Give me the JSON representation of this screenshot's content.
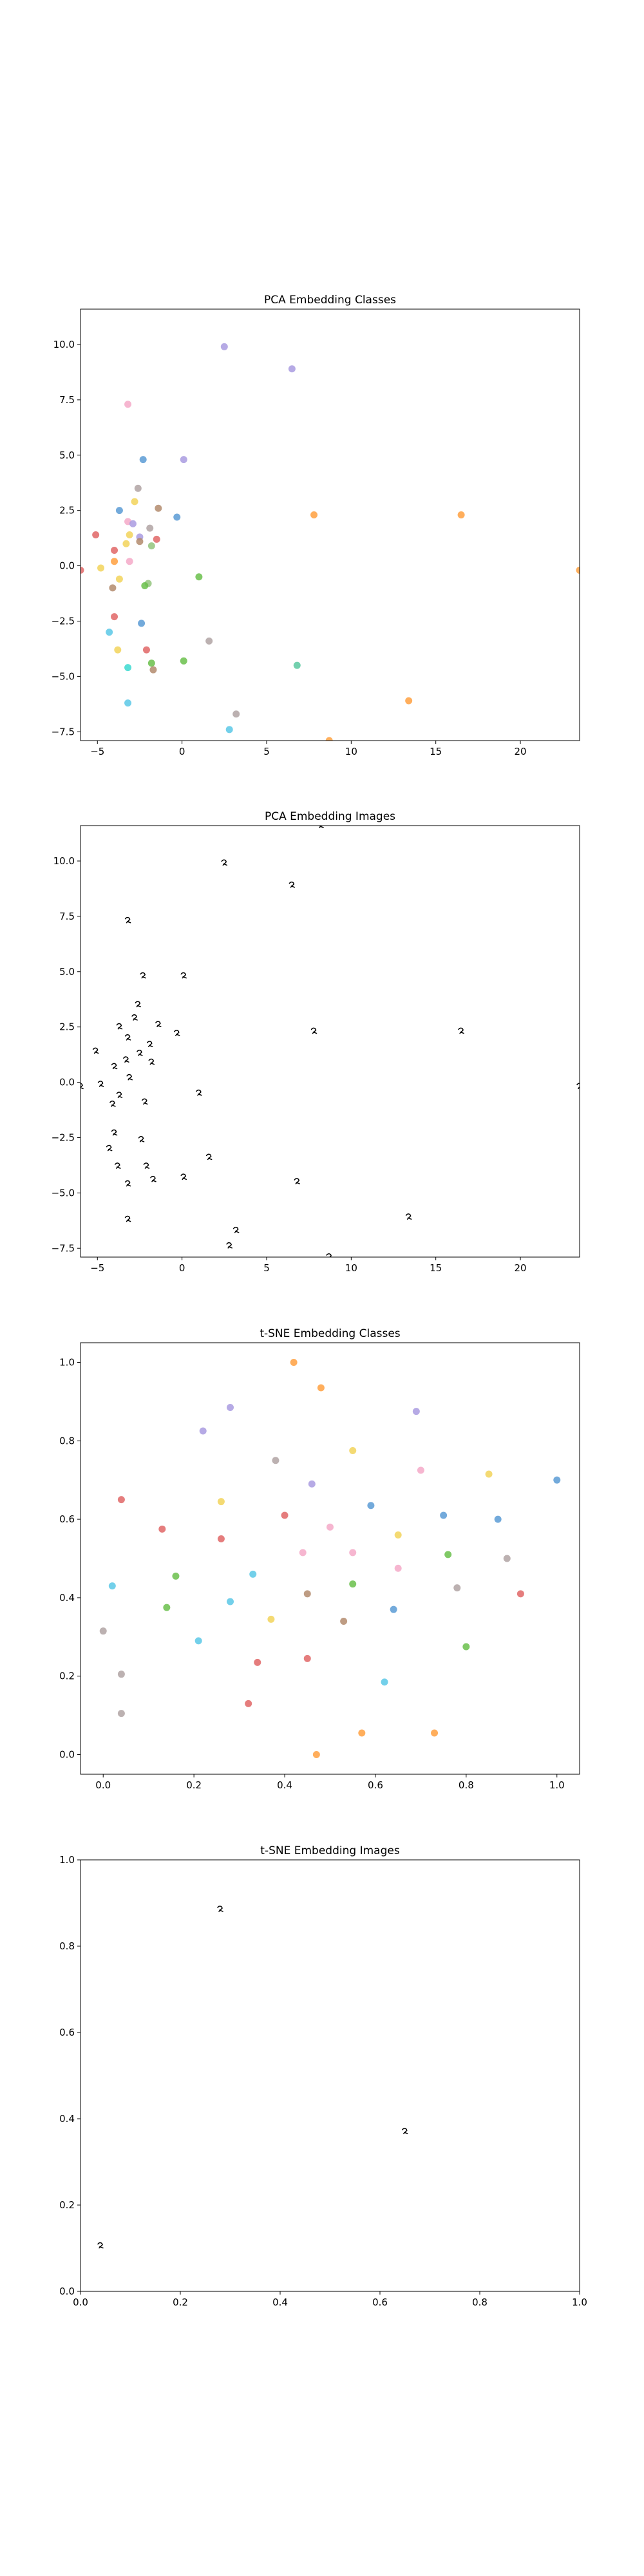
{
  "chart_data": [
    {
      "type": "scatter",
      "title": "PCA Embedding Classes",
      "xlim": [
        -6,
        23.5
      ],
      "ylim": [
        -7.9,
        11.6
      ],
      "xticks": [
        -5,
        0,
        5,
        10,
        15,
        20
      ],
      "yticks": [
        -7.5,
        -5.0,
        -2.5,
        0.0,
        2.5,
        5.0,
        7.5,
        10.0
      ],
      "xtick_labels": [
        "−5",
        "0",
        "5",
        "10",
        "15",
        "20"
      ],
      "ytick_labels": [
        "−7.5",
        "−5.0",
        "−2.5",
        "0.0",
        "2.5",
        "5.0",
        "7.5",
        "10.0"
      ],
      "grid": false,
      "marker_style": "colored dots",
      "points": [
        {
          "x": 2.5,
          "y": 9.9,
          "color": "#a99be0"
        },
        {
          "x": 6.5,
          "y": 8.9,
          "color": "#a99be0"
        },
        {
          "x": -3.2,
          "y": 7.3,
          "color": "#f4a9c8"
        },
        {
          "x": -2.3,
          "y": 4.8,
          "color": "#5b9bd5"
        },
        {
          "x": 0.1,
          "y": 4.8,
          "color": "#a99be0"
        },
        {
          "x": -2.6,
          "y": 3.5,
          "color": "#b0a3a3"
        },
        {
          "x": -2.8,
          "y": 2.9,
          "color": "#f2d35a"
        },
        {
          "x": -1.4,
          "y": 2.6,
          "color": "#b38b6d"
        },
        {
          "x": -3.7,
          "y": 2.5,
          "color": "#5b9bd5"
        },
        {
          "x": -0.3,
          "y": 2.2,
          "color": "#5b9bd5"
        },
        {
          "x": 7.8,
          "y": 2.3,
          "color": "#ffa040"
        },
        {
          "x": 16.5,
          "y": 2.3,
          "color": "#ffa040"
        },
        {
          "x": -3.2,
          "y": 2.0,
          "color": "#f4a9c8"
        },
        {
          "x": -2.9,
          "y": 1.9,
          "color": "#a99be0"
        },
        {
          "x": -1.9,
          "y": 1.7,
          "color": "#b0a3a3"
        },
        {
          "x": -3.1,
          "y": 1.4,
          "color": "#f2d35a"
        },
        {
          "x": -5.1,
          "y": 1.4,
          "color": "#e06666"
        },
        {
          "x": -2.5,
          "y": 1.3,
          "color": "#a99be0"
        },
        {
          "x": -1.5,
          "y": 1.2,
          "color": "#e06666"
        },
        {
          "x": -3.3,
          "y": 1.0,
          "color": "#f2d35a"
        },
        {
          "x": -2.5,
          "y": 1.1,
          "color": "#b38b6d"
        },
        {
          "x": -1.8,
          "y": 0.9,
          "color": "#93c47d"
        },
        {
          "x": -4.0,
          "y": 0.7,
          "color": "#e06666"
        },
        {
          "x": -4.0,
          "y": 0.2,
          "color": "#ffa040"
        },
        {
          "x": -3.1,
          "y": 0.2,
          "color": "#f4a9c8"
        },
        {
          "x": -4.8,
          "y": -0.1,
          "color": "#f2d35a"
        },
        {
          "x": -6.0,
          "y": -0.2,
          "color": "#e06666"
        },
        {
          "x": 23.5,
          "y": -0.2,
          "color": "#ffa040"
        },
        {
          "x": -3.7,
          "y": -0.6,
          "color": "#f2d35a"
        },
        {
          "x": 1.0,
          "y": -0.5,
          "color": "#6abf4b"
        },
        {
          "x": -2.0,
          "y": -0.8,
          "color": "#93c47d"
        },
        {
          "x": -2.2,
          "y": -0.9,
          "color": "#6abf4b"
        },
        {
          "x": -4.1,
          "y": -1.0,
          "color": "#b38b6d"
        },
        {
          "x": -4.0,
          "y": -2.3,
          "color": "#e06666"
        },
        {
          "x": -2.4,
          "y": -2.6,
          "color": "#5b9bd5"
        },
        {
          "x": -4.3,
          "y": -3.0,
          "color": "#5bc8e6"
        },
        {
          "x": 1.6,
          "y": -3.4,
          "color": "#b0a3a3"
        },
        {
          "x": -3.8,
          "y": -3.8,
          "color": "#f2d35a"
        },
        {
          "x": -2.1,
          "y": -3.8,
          "color": "#e06666"
        },
        {
          "x": -1.8,
          "y": -4.4,
          "color": "#6abf4b"
        },
        {
          "x": -3.2,
          "y": -4.6,
          "color": "#3bd9d0"
        },
        {
          "x": -1.7,
          "y": -4.7,
          "color": "#b38b6d"
        },
        {
          "x": 0.1,
          "y": -4.3,
          "color": "#6abf4b"
        },
        {
          "x": 6.8,
          "y": -4.5,
          "color": "#5bc8a0"
        },
        {
          "x": -3.2,
          "y": -6.2,
          "color": "#5bc8e6"
        },
        {
          "x": 13.4,
          "y": -6.1,
          "color": "#ffa040"
        },
        {
          "x": 3.2,
          "y": -6.7,
          "color": "#b0a3a3"
        },
        {
          "x": 2.8,
          "y": -7.4,
          "color": "#5bc8e6"
        },
        {
          "x": 8.7,
          "y": -7.9,
          "color": "#ffa040"
        }
      ]
    },
    {
      "type": "scatter",
      "title": "PCA Embedding Images",
      "xlim": [
        -6,
        23.5
      ],
      "ylim": [
        -7.9,
        11.6
      ],
      "xticks": [
        -5,
        0,
        5,
        10,
        15,
        20
      ],
      "yticks": [
        -7.5,
        -5.0,
        -2.5,
        0.0,
        2.5,
        5.0,
        7.5,
        10.0
      ],
      "xtick_labels": [
        "−5",
        "0",
        "5",
        "10",
        "15",
        "20"
      ],
      "ytick_labels": [
        "−7.5",
        "−5.0",
        "−2.5",
        "0.0",
        "2.5",
        "5.0",
        "7.5",
        "10.0"
      ],
      "grid": false,
      "marker_style": "small glyph images",
      "points": [
        {
          "x": 2.5,
          "y": 9.9
        },
        {
          "x": 6.5,
          "y": 8.9
        },
        {
          "x": 8.2,
          "y": 11.6
        },
        {
          "x": -3.2,
          "y": 7.3
        },
        {
          "x": -2.3,
          "y": 4.8
        },
        {
          "x": 0.1,
          "y": 4.8
        },
        {
          "x": -2.6,
          "y": 3.5
        },
        {
          "x": -2.8,
          "y": 2.9
        },
        {
          "x": -1.4,
          "y": 2.6
        },
        {
          "x": -3.7,
          "y": 2.5
        },
        {
          "x": -0.3,
          "y": 2.2
        },
        {
          "x": 7.8,
          "y": 2.3
        },
        {
          "x": 16.5,
          "y": 2.3
        },
        {
          "x": -3.2,
          "y": 2.0
        },
        {
          "x": -1.9,
          "y": 1.7
        },
        {
          "x": -5.1,
          "y": 1.4
        },
        {
          "x": -2.5,
          "y": 1.3
        },
        {
          "x": -3.3,
          "y": 1.0
        },
        {
          "x": -1.8,
          "y": 0.9
        },
        {
          "x": -4.0,
          "y": 0.7
        },
        {
          "x": -3.1,
          "y": 0.2
        },
        {
          "x": -4.8,
          "y": -0.1
        },
        {
          "x": -6.0,
          "y": -0.2
        },
        {
          "x": 23.5,
          "y": -0.2
        },
        {
          "x": -3.7,
          "y": -0.6
        },
        {
          "x": 1.0,
          "y": -0.5
        },
        {
          "x": -2.2,
          "y": -0.9
        },
        {
          "x": -4.1,
          "y": -1.0
        },
        {
          "x": -4.0,
          "y": -2.3
        },
        {
          "x": -2.4,
          "y": -2.6
        },
        {
          "x": -4.3,
          "y": -3.0
        },
        {
          "x": 1.6,
          "y": -3.4
        },
        {
          "x": -3.8,
          "y": -3.8
        },
        {
          "x": -2.1,
          "y": -3.8
        },
        {
          "x": -1.7,
          "y": -4.4
        },
        {
          "x": -3.2,
          "y": -4.6
        },
        {
          "x": 0.1,
          "y": -4.3
        },
        {
          "x": 6.8,
          "y": -4.5
        },
        {
          "x": -3.2,
          "y": -6.2
        },
        {
          "x": 13.4,
          "y": -6.1
        },
        {
          "x": 3.2,
          "y": -6.7
        },
        {
          "x": 2.8,
          "y": -7.4
        },
        {
          "x": 8.7,
          "y": -7.9
        }
      ]
    },
    {
      "type": "scatter",
      "title": "t-SNE Embedding Classes",
      "xlim": [
        -0.05,
        1.05
      ],
      "ylim": [
        -0.05,
        1.05
      ],
      "xticks": [
        0.0,
        0.2,
        0.4,
        0.6,
        0.8,
        1.0
      ],
      "yticks": [
        0.0,
        0.2,
        0.4,
        0.6,
        0.8,
        1.0
      ],
      "xtick_labels": [
        "0.0",
        "0.2",
        "0.4",
        "0.6",
        "0.8",
        "1.0"
      ],
      "ytick_labels": [
        "0.0",
        "0.2",
        "0.4",
        "0.6",
        "0.8",
        "1.0"
      ],
      "grid": false,
      "marker_style": "colored dots",
      "points": [
        {
          "x": 0.42,
          "y": 1.0,
          "color": "#ffa040"
        },
        {
          "x": 0.48,
          "y": 0.935,
          "color": "#ffa040"
        },
        {
          "x": 0.28,
          "y": 0.885,
          "color": "#a99be0"
        },
        {
          "x": 0.69,
          "y": 0.875,
          "color": "#a99be0"
        },
        {
          "x": 0.22,
          "y": 0.825,
          "color": "#a99be0"
        },
        {
          "x": 0.55,
          "y": 0.775,
          "color": "#f2d35a"
        },
        {
          "x": 0.38,
          "y": 0.75,
          "color": "#b0a3a3"
        },
        {
          "x": 0.7,
          "y": 0.725,
          "color": "#f4a9c8"
        },
        {
          "x": 0.85,
          "y": 0.715,
          "color": "#f2d35a"
        },
        {
          "x": 1.0,
          "y": 0.7,
          "color": "#5b9bd5"
        },
        {
          "x": 0.46,
          "y": 0.69,
          "color": "#a99be0"
        },
        {
          "x": 0.04,
          "y": 0.65,
          "color": "#e06666"
        },
        {
          "x": 0.26,
          "y": 0.645,
          "color": "#f2d35a"
        },
        {
          "x": 0.59,
          "y": 0.635,
          "color": "#5b9bd5"
        },
        {
          "x": 0.75,
          "y": 0.61,
          "color": "#5b9bd5"
        },
        {
          "x": 0.4,
          "y": 0.61,
          "color": "#e06666"
        },
        {
          "x": 0.87,
          "y": 0.6,
          "color": "#5b9bd5"
        },
        {
          "x": 0.5,
          "y": 0.58,
          "color": "#f4a9c8"
        },
        {
          "x": 0.13,
          "y": 0.575,
          "color": "#e06666"
        },
        {
          "x": 0.65,
          "y": 0.56,
          "color": "#f2d35a"
        },
        {
          "x": 0.26,
          "y": 0.55,
          "color": "#e06666"
        },
        {
          "x": 0.44,
          "y": 0.515,
          "color": "#f4a9c8"
        },
        {
          "x": 0.55,
          "y": 0.515,
          "color": "#f4a9c8"
        },
        {
          "x": 0.76,
          "y": 0.51,
          "color": "#6abf4b"
        },
        {
          "x": 0.89,
          "y": 0.5,
          "color": "#b0a3a3"
        },
        {
          "x": 0.65,
          "y": 0.475,
          "color": "#f4a9c8"
        },
        {
          "x": 0.33,
          "y": 0.46,
          "color": "#5bc8e6"
        },
        {
          "x": 0.16,
          "y": 0.455,
          "color": "#6abf4b"
        },
        {
          "x": 0.55,
          "y": 0.435,
          "color": "#6abf4b"
        },
        {
          "x": 0.02,
          "y": 0.43,
          "color": "#5bc8e6"
        },
        {
          "x": 0.78,
          "y": 0.425,
          "color": "#b0a3a3"
        },
        {
          "x": 0.45,
          "y": 0.41,
          "color": "#b38b6d"
        },
        {
          "x": 0.92,
          "y": 0.41,
          "color": "#e06666"
        },
        {
          "x": 0.28,
          "y": 0.39,
          "color": "#5bc8e6"
        },
        {
          "x": 0.14,
          "y": 0.375,
          "color": "#6abf4b"
        },
        {
          "x": 0.64,
          "y": 0.37,
          "color": "#5b9bd5"
        },
        {
          "x": 0.37,
          "y": 0.345,
          "color": "#f2d35a"
        },
        {
          "x": 0.53,
          "y": 0.34,
          "color": "#b38b6d"
        },
        {
          "x": 0.0,
          "y": 0.315,
          "color": "#b0a3a3"
        },
        {
          "x": 0.21,
          "y": 0.29,
          "color": "#5bc8e6"
        },
        {
          "x": 0.8,
          "y": 0.275,
          "color": "#6abf4b"
        },
        {
          "x": 0.45,
          "y": 0.245,
          "color": "#e06666"
        },
        {
          "x": 0.34,
          "y": 0.235,
          "color": "#e06666"
        },
        {
          "x": 0.04,
          "y": 0.205,
          "color": "#b0a3a3"
        },
        {
          "x": 0.62,
          "y": 0.185,
          "color": "#5bc8e6"
        },
        {
          "x": 0.32,
          "y": 0.13,
          "color": "#e06666"
        },
        {
          "x": 0.04,
          "y": 0.105,
          "color": "#b0a3a3"
        },
        {
          "x": 0.57,
          "y": 0.055,
          "color": "#ffa040"
        },
        {
          "x": 0.73,
          "y": 0.055,
          "color": "#ffa040"
        },
        {
          "x": 0.47,
          "y": 0.0,
          "color": "#ffa040"
        }
      ]
    },
    {
      "type": "scatter",
      "title": "t-SNE Embedding Images",
      "xlim": [
        0.0,
        1.0
      ],
      "ylim": [
        0.0,
        1.0
      ],
      "xticks": [
        0.0,
        0.2,
        0.4,
        0.6,
        0.8,
        1.0
      ],
      "yticks": [
        0.0,
        0.2,
        0.4,
        0.6,
        0.8,
        1.0
      ],
      "xtick_labels": [
        "0.0",
        "0.2",
        "0.4",
        "0.6",
        "0.8",
        "1.0"
      ],
      "ytick_labels": [
        "0.0",
        "0.2",
        "0.4",
        "0.6",
        "0.8",
        "1.0"
      ],
      "grid": false,
      "marker_style": "small glyph images",
      "points": [
        {
          "x": 0.28,
          "y": 0.885
        },
        {
          "x": 0.65,
          "y": 0.37
        },
        {
          "x": 0.04,
          "y": 0.105
        }
      ]
    }
  ]
}
